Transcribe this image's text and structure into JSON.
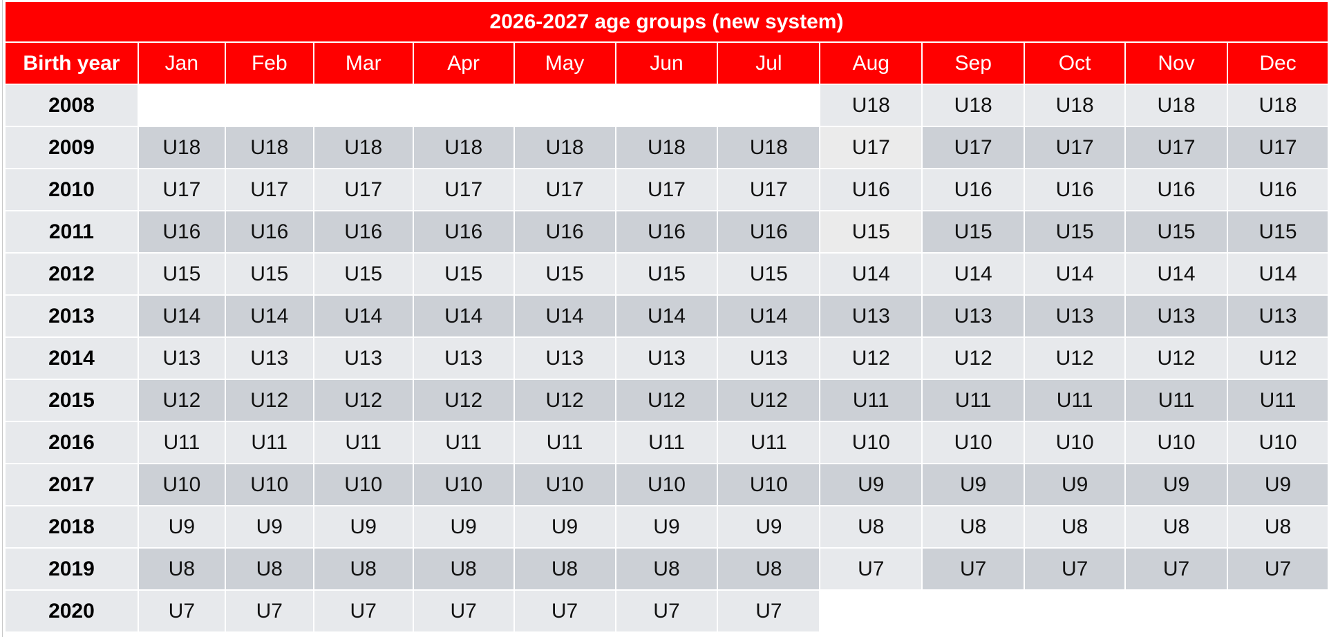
{
  "table": {
    "title": "2026-2027 age groups (new system)",
    "columns": [
      "Birth year",
      "Jan",
      "Feb",
      "Mar",
      "Apr",
      "May",
      "Jun",
      "Jul",
      "Aug",
      "Sep",
      "Oct",
      "Nov",
      "Dec"
    ],
    "rows": [
      {
        "year": "2008",
        "cells": [
          "",
          "",
          "",
          "",
          "",
          "",
          "",
          "U18",
          "U18",
          "U18",
          "U18",
          "U18"
        ]
      },
      {
        "year": "2009",
        "cells": [
          "U18",
          "U18",
          "U18",
          "U18",
          "U18",
          "U18",
          "U18",
          "U17",
          "U17",
          "U17",
          "U17",
          "U17"
        ]
      },
      {
        "year": "2010",
        "cells": [
          "U17",
          "U17",
          "U17",
          "U17",
          "U17",
          "U17",
          "U17",
          "U16",
          "U16",
          "U16",
          "U16",
          "U16"
        ]
      },
      {
        "year": "2011",
        "cells": [
          "U16",
          "U16",
          "U16",
          "U16",
          "U16",
          "U16",
          "U16",
          "U15",
          "U15",
          "U15",
          "U15",
          "U15"
        ]
      },
      {
        "year": "2012",
        "cells": [
          "U15",
          "U15",
          "U15",
          "U15",
          "U15",
          "U15",
          "U15",
          "U14",
          "U14",
          "U14",
          "U14",
          "U14"
        ]
      },
      {
        "year": "2013",
        "cells": [
          "U14",
          "U14",
          "U14",
          "U14",
          "U14",
          "U14",
          "U14",
          "U13",
          "U13",
          "U13",
          "U13",
          "U13"
        ]
      },
      {
        "year": "2014",
        "cells": [
          "U13",
          "U13",
          "U13",
          "U13",
          "U13",
          "U13",
          "U13",
          "U12",
          "U12",
          "U12",
          "U12",
          "U12"
        ]
      },
      {
        "year": "2015",
        "cells": [
          "U12",
          "U12",
          "U12",
          "U12",
          "U12",
          "U12",
          "U12",
          "U11",
          "U11",
          "U11",
          "U11",
          "U11"
        ]
      },
      {
        "year": "2016",
        "cells": [
          "U11",
          "U11",
          "U11",
          "U11",
          "U11",
          "U11",
          "U11",
          "U10",
          "U10",
          "U10",
          "U10",
          "U10"
        ]
      },
      {
        "year": "2017",
        "cells": [
          "U10",
          "U10",
          "U10",
          "U10",
          "U10",
          "U10",
          "U10",
          "U9",
          "U9",
          "U9",
          "U9",
          "U9"
        ]
      },
      {
        "year": "2018",
        "cells": [
          "U9",
          "U9",
          "U9",
          "U9",
          "U9",
          "U9",
          "U9",
          "U8",
          "U8",
          "U8",
          "U8",
          "U8"
        ]
      },
      {
        "year": "2019",
        "cells": [
          "U8",
          "U8",
          "U8",
          "U8",
          "U8",
          "U8",
          "U8",
          "U7",
          "U7",
          "U7",
          "U7",
          "U7"
        ]
      },
      {
        "year": "2020",
        "cells": [
          "U7",
          "U7",
          "U7",
          "U7",
          "U7",
          "U7",
          "U7",
          "",
          "",
          "",
          "",
          ""
        ]
      }
    ],
    "shading": [
      [
        "empty",
        "empty",
        "empty",
        "empty",
        "empty",
        "empty",
        "empty",
        "light",
        "light",
        "light",
        "light",
        "light"
      ],
      [
        "dark",
        "dark",
        "dark",
        "dark",
        "dark",
        "dark",
        "dark",
        "pale",
        "dark",
        "dark",
        "dark",
        "dark"
      ],
      [
        "light",
        "light",
        "light",
        "light",
        "light",
        "light",
        "light",
        "light",
        "light",
        "light",
        "light",
        "light"
      ],
      [
        "dark",
        "dark",
        "dark",
        "dark",
        "dark",
        "dark",
        "dark",
        "pale",
        "dark",
        "dark",
        "dark",
        "dark"
      ],
      [
        "light",
        "light",
        "light",
        "light",
        "light",
        "light",
        "light",
        "light",
        "light",
        "light",
        "light",
        "light"
      ],
      [
        "dark",
        "dark",
        "dark",
        "dark",
        "dark",
        "dark",
        "dark",
        "dark",
        "dark",
        "dark",
        "dark",
        "dark"
      ],
      [
        "light",
        "light",
        "light",
        "light",
        "light",
        "light",
        "light",
        "light",
        "light",
        "light",
        "light",
        "light"
      ],
      [
        "dark",
        "dark",
        "dark",
        "dark",
        "dark",
        "dark",
        "dark",
        "dark",
        "dark",
        "dark",
        "dark",
        "dark"
      ],
      [
        "light",
        "light",
        "light",
        "light",
        "light",
        "light",
        "light",
        "light",
        "light",
        "light",
        "light",
        "light"
      ],
      [
        "dark",
        "dark",
        "dark",
        "dark",
        "dark",
        "dark",
        "dark",
        "dark",
        "dark",
        "dark",
        "dark",
        "dark"
      ],
      [
        "light",
        "light",
        "light",
        "light",
        "light",
        "light",
        "light",
        "light",
        "light",
        "light",
        "light",
        "light"
      ],
      [
        "dark",
        "dark",
        "dark",
        "dark",
        "dark",
        "dark",
        "dark",
        "light",
        "dark",
        "dark",
        "dark",
        "dark"
      ],
      [
        "light",
        "light",
        "light",
        "light",
        "light",
        "light",
        "light",
        "empty",
        "empty",
        "empty",
        "empty",
        "empty"
      ]
    ],
    "colors": {
      "header_red": "#ff0000",
      "header_text": "#ffffff",
      "cell_light": "#e7e9ec",
      "cell_dark": "#ccd0d6",
      "cell_pale": "#ebebeb",
      "gridline": "#ffffff"
    }
  }
}
